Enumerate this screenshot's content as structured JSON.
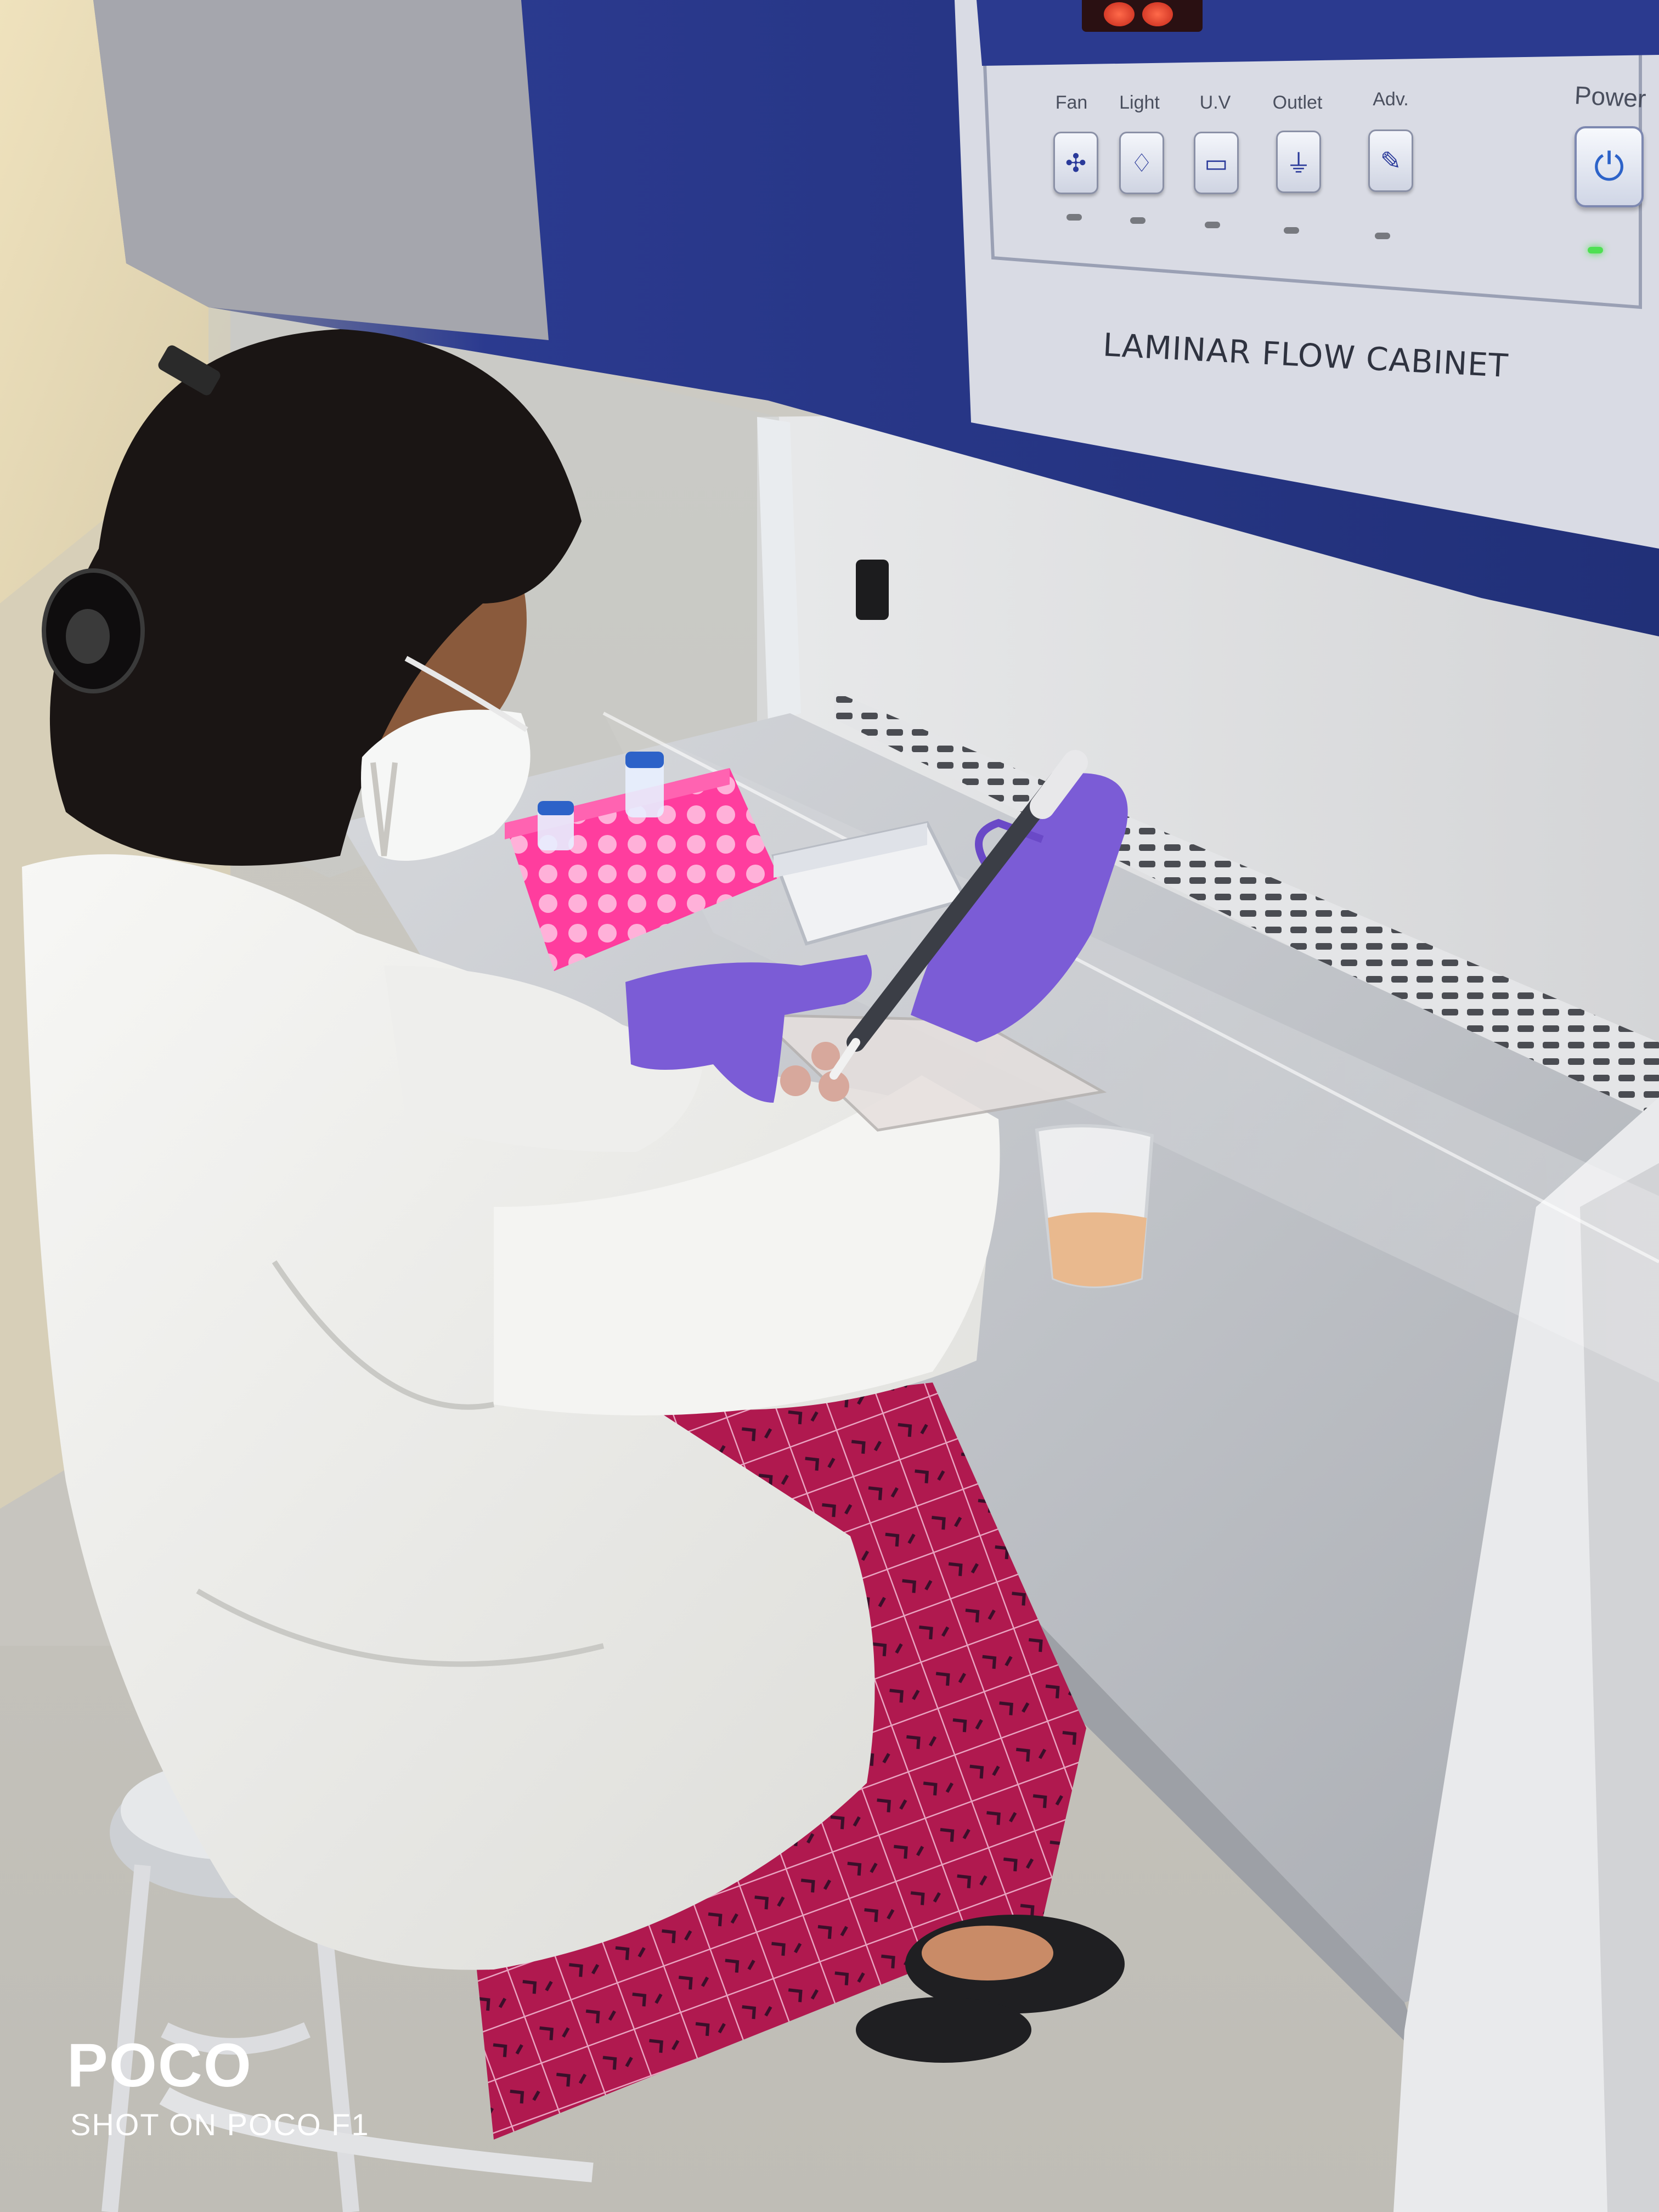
{
  "photo": {
    "subject": "lab worker pipetting inside a laminar flow cabinet"
  },
  "cabinet": {
    "label": "LAMINAR FLOW CABINET",
    "panel_buttons": [
      {
        "label": "Fan",
        "icon": "fan-icon",
        "glyph": "✣"
      },
      {
        "label": "Light",
        "icon": "light-bulb-icon",
        "glyph": "♢"
      },
      {
        "label": "U.V",
        "icon": "uv-lamp-icon",
        "glyph": "▭"
      },
      {
        "label": "Outlet",
        "icon": "outlet-icon",
        "glyph": "⏚"
      },
      {
        "label": "Adv.",
        "icon": "wrench-icon",
        "glyph": "✎"
      }
    ],
    "power": {
      "label": "Power",
      "icon": "power-icon",
      "glyph": "⏻",
      "indicator": "on"
    }
  },
  "watermark": {
    "brand": "POCO",
    "caption": "SHOT ON POCO F1"
  },
  "colors": {
    "cabinet_blue": "#2b3a8f",
    "glove_purple": "#7b5cd6",
    "rack_pink": "#ff3d9e",
    "coat_white": "#f2f2f0",
    "dress_magenta": "#b0194f"
  }
}
